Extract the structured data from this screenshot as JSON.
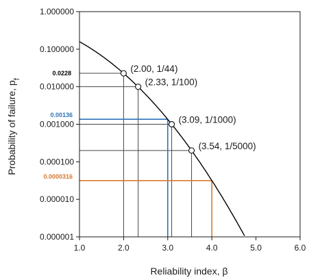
{
  "chart_data": {
    "type": "line",
    "xlabel": "Reliability index, β",
    "ylabel": "Probability of failure, p",
    "ylabel_subscript": "f",
    "xlim": [
      1.0,
      6.0
    ],
    "ylim": [
      1e-06,
      1.0
    ],
    "y_scale": "log",
    "grid": false,
    "x_ticks": [
      "1.0",
      "2.0",
      "3.0",
      "4.0",
      "5.0",
      "6.0"
    ],
    "y_ticks": [
      "1.000000",
      "0.100000",
      "0.010000",
      "0.001000",
      "0.000100",
      "0.000010",
      "0.000001"
    ],
    "series": [
      {
        "color": "#000000",
        "x": [
          1.0,
          1.25,
          1.5,
          1.75,
          2.0,
          2.25,
          2.5,
          2.75,
          3.0,
          3.25,
          3.5,
          3.75,
          4.0,
          4.25,
          4.5,
          4.75
        ],
        "y": [
          0.1587,
          0.1056,
          0.0668,
          0.0401,
          0.0228,
          0.0122,
          0.00621,
          0.00298,
          0.00135,
          0.000577,
          0.000233,
          8.84e-05,
          3.17e-05,
          1.07e-05,
          3.4e-06,
          1.02e-06
        ]
      }
    ],
    "points": [
      {
        "x": 2.0,
        "y": 0.0228,
        "label": "(2.00, 1/44)"
      },
      {
        "x": 2.33,
        "y": 0.01,
        "label": "(2.33, 1/100)"
      },
      {
        "x": 3.09,
        "y": 0.001,
        "label": "(3.09, 1/1000)"
      },
      {
        "x": 3.54,
        "y": 0.0002,
        "label": "(3.54, 1/5000)"
      }
    ],
    "reference_lines": [
      {
        "x": 3.0,
        "y": 0.00136,
        "label": "0.00136",
        "color": "#2e74b5"
      },
      {
        "x": 4.0,
        "y": 3.16e-05,
        "label": "0.0000316",
        "color": "#d9782d"
      }
    ],
    "annotations": [
      {
        "y": 0.0228,
        "label": "0.0228",
        "color": "#000000"
      }
    ]
  }
}
